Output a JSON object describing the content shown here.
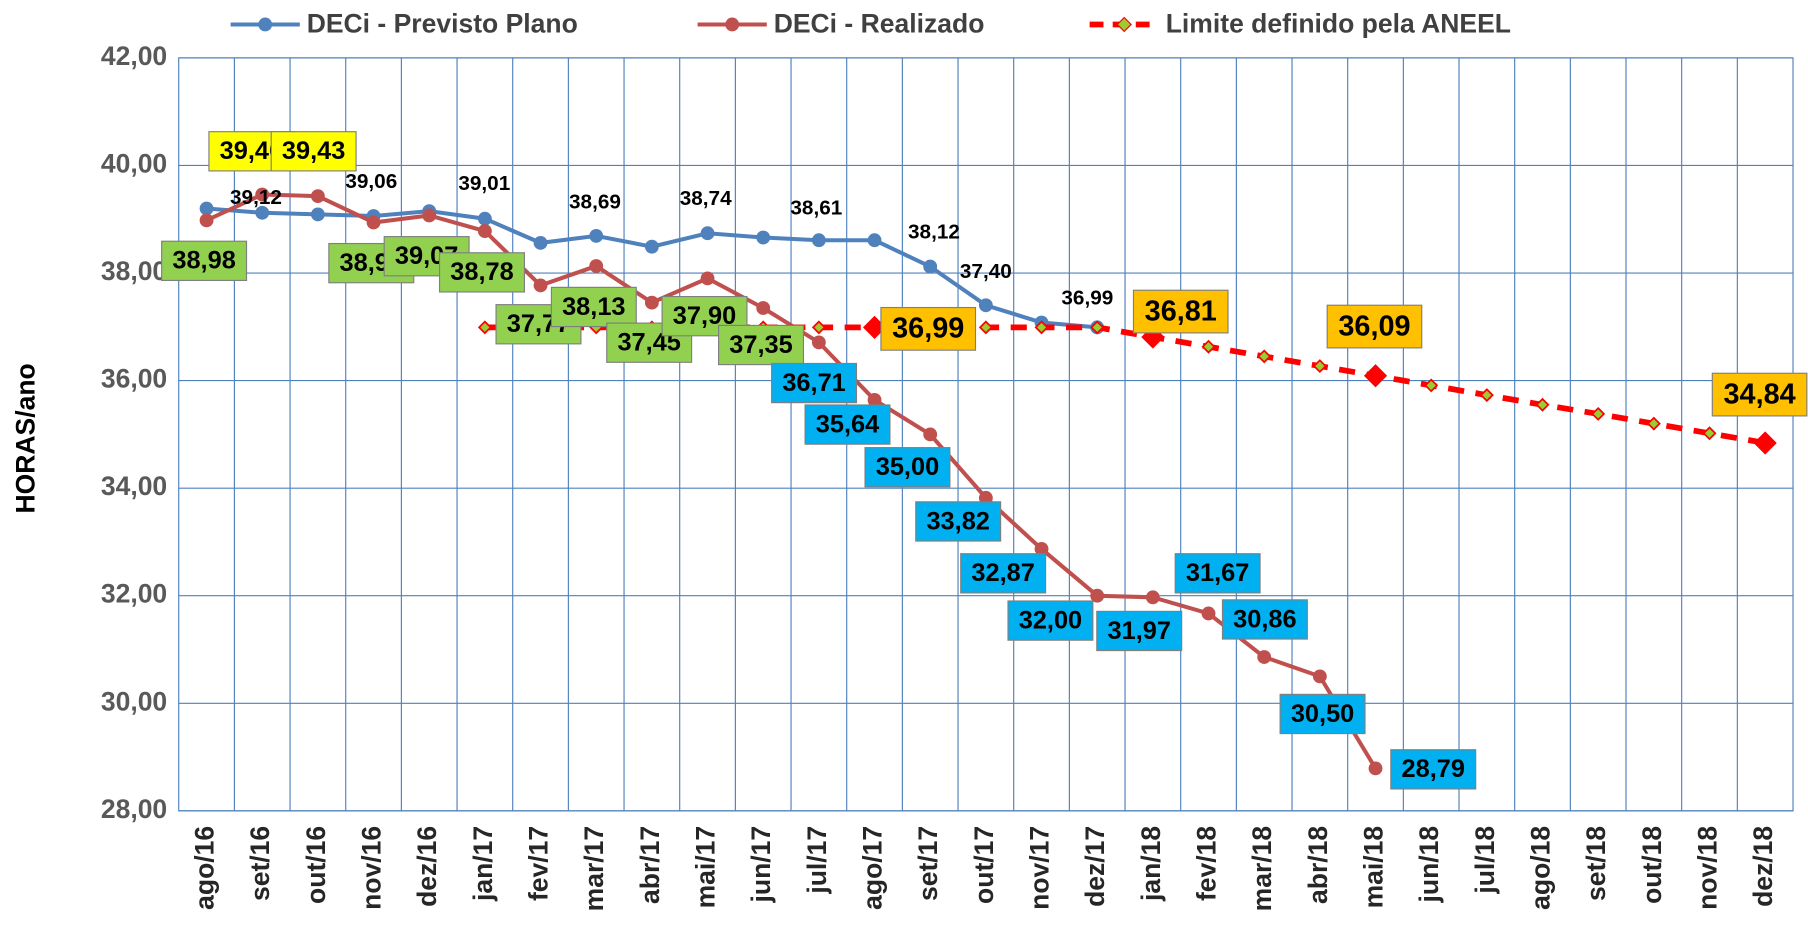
{
  "chart_data": {
    "type": "line",
    "y_label": "HORAS/ano",
    "categories": [
      "ago/16",
      "set/16",
      "out/16",
      "nov/16",
      "dez/16",
      "jan/17",
      "fev/17",
      "mar/17",
      "abr/17",
      "mai/17",
      "jun/17",
      "jul/17",
      "ago/17",
      "set/17",
      "out/17",
      "nov/17",
      "dez/17",
      "jan/18",
      "fev/18",
      "mar/18",
      "abr/18",
      "mai/18",
      "jun/18",
      "jul/18",
      "ago/18",
      "set/18",
      "out/18",
      "nov/18",
      "dez/18"
    ],
    "ylim": [
      28,
      42
    ],
    "yticks": [
      {
        "value": 28,
        "label": "28,00"
      },
      {
        "value": 30,
        "label": "30,00"
      },
      {
        "value": 32,
        "label": "32,00"
      },
      {
        "value": 34,
        "label": "34,00"
      },
      {
        "value": 36,
        "label": "36,00"
      },
      {
        "value": 38,
        "label": "38,00"
      },
      {
        "value": 40,
        "label": "40,00"
      },
      {
        "value": 42,
        "label": "42,00"
      }
    ],
    "grid": true,
    "legend": "top",
    "series": [
      {
        "name": "DECi - Previsto Plano",
        "color": "#4f81bd",
        "values": [
          39.2,
          39.12,
          39.09,
          39.06,
          39.15,
          39.01,
          38.56,
          38.69,
          38.49,
          38.74,
          38.66,
          38.61,
          38.61,
          38.12,
          37.4,
          37.08,
          36.99,
          null,
          null,
          null,
          null,
          null,
          null,
          null,
          null,
          null,
          null,
          null,
          null
        ],
        "value_labels": [
          null,
          "39,12",
          null,
          "39,06",
          null,
          "39,01",
          null,
          "38,69",
          null,
          "38,74",
          null,
          "38,61",
          null,
          "38,12",
          "37,40",
          null,
          "36,99",
          null,
          null,
          null,
          null,
          null,
          null,
          null,
          null,
          null,
          null,
          null,
          null
        ]
      },
      {
        "name": "DECi - Realizado",
        "color": "#c0504d",
        "values": [
          38.98,
          39.46,
          39.43,
          38.94,
          39.07,
          38.78,
          37.77,
          38.13,
          37.45,
          37.9,
          37.35,
          36.71,
          35.64,
          35.0,
          33.82,
          32.87,
          32.0,
          31.97,
          31.67,
          30.86,
          30.5,
          28.79,
          null,
          null,
          null,
          null,
          null,
          null,
          null
        ],
        "value_labels": [
          "38,98",
          "39,46",
          "39,43",
          "38,94",
          "39,07",
          "38,78",
          "37,77",
          "38,13",
          "37,45",
          "37,90",
          "37,35",
          "36,71",
          "35,64",
          "35,00",
          "33,82",
          "32,87",
          "32,00",
          "31,97",
          "31,67",
          "30,86",
          "30,50",
          "28,79",
          null,
          null,
          null,
          null,
          null,
          null,
          null
        ]
      },
      {
        "name": "Limite definido pela ANEEL",
        "color": "#ff0000",
        "values": [
          null,
          null,
          null,
          null,
          null,
          36.99,
          36.99,
          36.99,
          36.99,
          36.99,
          36.99,
          36.99,
          36.99,
          36.99,
          36.99,
          36.99,
          36.99,
          36.81,
          36.63,
          36.45,
          36.27,
          36.09,
          35.91,
          35.73,
          35.55,
          35.38,
          35.2,
          35.02,
          34.84
        ],
        "value_labels": [
          null,
          null,
          null,
          null,
          null,
          null,
          null,
          null,
          null,
          null,
          null,
          null,
          "36,99",
          null,
          null,
          null,
          null,
          "36,81",
          null,
          null,
          null,
          "36,09",
          null,
          null,
          null,
          null,
          null,
          null,
          "34,84"
        ]
      }
    ]
  }
}
